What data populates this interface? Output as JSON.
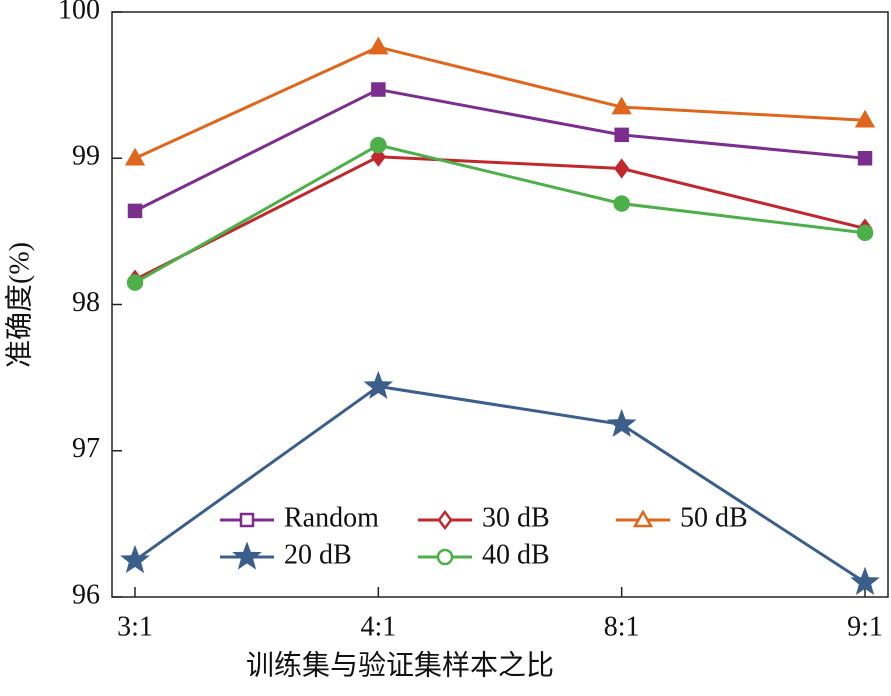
{
  "chart_data": {
    "type": "line",
    "x_label": "训练集与验证集样本之比",
    "y_label": "准确度(%)",
    "categories": [
      "3:1",
      "4:1",
      "8:1",
      "9:1"
    ],
    "ylim": [
      96,
      100
    ],
    "yticks": [
      96,
      97,
      98,
      99,
      100
    ],
    "series": [
      {
        "name": "Random",
        "color": "#7b2e8e",
        "marker": "square",
        "values": [
          98.64,
          99.47,
          99.16,
          99.0
        ]
      },
      {
        "name": "30 dB",
        "color": "#c0282d",
        "marker": "diamond",
        "values": [
          98.17,
          99.01,
          98.93,
          98.52
        ]
      },
      {
        "name": "50 dB",
        "color": "#e0661e",
        "marker": "triangle",
        "values": [
          99.0,
          99.76,
          99.35,
          99.26
        ]
      },
      {
        "name": "20 dB",
        "color": "#3b5f8a",
        "marker": "star",
        "values": [
          96.25,
          97.44,
          97.18,
          96.1
        ]
      },
      {
        "name": "40 dB",
        "color": "#4daf4a",
        "marker": "circle",
        "values": [
          98.15,
          99.09,
          98.69,
          98.49
        ]
      }
    ]
  }
}
